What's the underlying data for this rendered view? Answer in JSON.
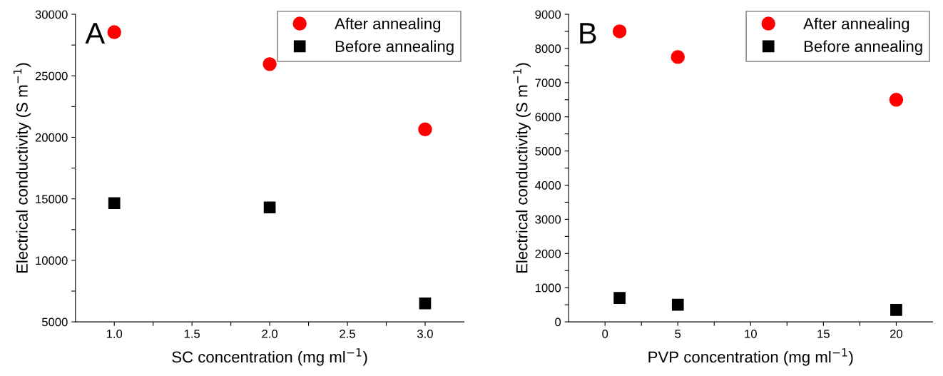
{
  "chart_data": [
    {
      "type": "scatter",
      "xlabel": "SC concentration (mg ml$^{−1}$)",
      "ylabel": "Electrical conductivity (S m$^{−1}$)",
      "annotations": [
        "A"
      ],
      "x": [
        1.0,
        2.0,
        3.0
      ],
      "series": [
        {
          "name": "After annealing",
          "color": "#ff0000",
          "marker": "circle",
          "values": [
            28550,
            25950,
            20650
          ]
        },
        {
          "name": "Before annealing",
          "color": "#000000",
          "marker": "square",
          "values": [
            14650,
            14300,
            6500
          ]
        }
      ],
      "xlim": [
        0.75,
        3.25
      ],
      "xticks": [
        {
          "value": 1.0,
          "label": "1.0"
        },
        {
          "value": 1.25,
          "label": null
        },
        {
          "value": 1.5,
          "label": "1.5"
        },
        {
          "value": 1.75,
          "label": null
        },
        {
          "value": 2.0,
          "label": "2.0"
        },
        {
          "value": 2.25,
          "label": null
        },
        {
          "value": 2.5,
          "label": "2.5"
        },
        {
          "value": 2.75,
          "label": null
        },
        {
          "value": 3.0,
          "label": "3.0"
        }
      ],
      "ylim": [
        5000,
        30000
      ],
      "yticks": [
        5000,
        {
          "value": 7500,
          "label": null
        },
        10000,
        {
          "value": 12500,
          "label": null
        },
        15000,
        {
          "value": 17500,
          "label": null
        },
        20000,
        {
          "value": 22500,
          "label": null
        },
        25000,
        {
          "value": 27500,
          "label": null
        },
        30000
      ],
      "grid": false,
      "legend": "top right"
    },
    {
      "type": "scatter",
      "xlabel": "PVP concentration (mg ml$^{−1}$)",
      "ylabel": "Electrical conductivity (S m$^{−1}$)",
      "annotations": [
        "B"
      ],
      "x": [
        1,
        5,
        20
      ],
      "series": [
        {
          "name": "After annealing",
          "color": "#ff0000",
          "marker": "circle",
          "values": [
            8500,
            7750,
            6500
          ]
        },
        {
          "name": "Before annealing",
          "color": "#000000",
          "marker": "square",
          "values": [
            700,
            500,
            350
          ]
        }
      ],
      "xlim": [
        -2.5,
        22.5
      ],
      "xticks": [
        0,
        {
          "value": 2.5,
          "label": null
        },
        5,
        {
          "value": 7.5,
          "label": null
        },
        10,
        {
          "value": 12.5,
          "label": null
        },
        15,
        {
          "value": 17.5,
          "label": null
        },
        20
      ],
      "ylim": [
        0,
        9000
      ],
      "yticks": [
        0,
        {
          "value": 500,
          "label": null
        },
        1000,
        {
          "value": 1500,
          "label": null
        },
        2000,
        {
          "value": 2500,
          "label": null
        },
        3000,
        {
          "value": 3500,
          "label": null
        },
        4000,
        {
          "value": 4500,
          "label": null
        },
        5000,
        {
          "value": 5500,
          "label": null
        },
        6000,
        {
          "value": 6500,
          "label": null
        },
        7000,
        {
          "value": 7500,
          "label": null
        },
        8000,
        {
          "value": 8500,
          "label": null
        },
        9000
      ],
      "grid": false,
      "legend": "top right"
    }
  ]
}
